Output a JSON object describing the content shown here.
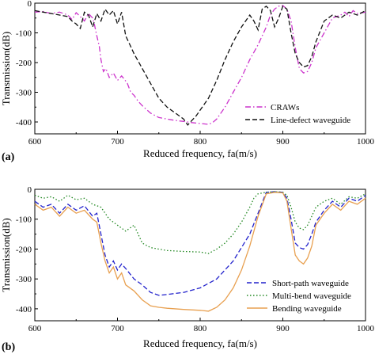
{
  "chart_data": [
    {
      "type": "line",
      "panel_label": "(a)",
      "xlabel": "Reduced frequency, fa(m/s)",
      "ylabel": "Transmission(dB)",
      "xlim": [
        600,
        1000
      ],
      "ylim": [
        -440,
        0
      ],
      "xticks": [
        600,
        700,
        800,
        900,
        1000
      ],
      "yticks": [
        0,
        -100,
        -200,
        -300,
        -400
      ],
      "legend_position": "bottom-right",
      "series": [
        {
          "name": "CRAWs",
          "color": "#cc33cc",
          "dash": "dashdot",
          "x": [
            600,
            610,
            620,
            630,
            640,
            645,
            650,
            655,
            660,
            665,
            670,
            672,
            675,
            678,
            680,
            683,
            686,
            690,
            695,
            700,
            705,
            708,
            712,
            716,
            720,
            725,
            730,
            740,
            750,
            760,
            770,
            780,
            790,
            800,
            810,
            815,
            820,
            830,
            840,
            850,
            860,
            870,
            880,
            885,
            890,
            895,
            900,
            905,
            910,
            915,
            920,
            925,
            930,
            935,
            940,
            950,
            960,
            970,
            975,
            980,
            985,
            990,
            1000
          ],
          "y": [
            -30,
            -28,
            -35,
            -30,
            -40,
            -55,
            -32,
            -45,
            -60,
            -35,
            -50,
            -70,
            -110,
            -145,
            -190,
            -230,
            -220,
            -250,
            -235,
            -260,
            -245,
            -255,
            -270,
            -300,
            -310,
            -330,
            -345,
            -370,
            -385,
            -390,
            -395,
            -398,
            -402,
            -405,
            -408,
            -402,
            -390,
            -350,
            -300,
            -250,
            -190,
            -140,
            -80,
            -40,
            -20,
            -10,
            -8,
            -20,
            -60,
            -150,
            -220,
            -235,
            -230,
            -200,
            -150,
            -100,
            -50,
            -40,
            -30,
            -45,
            -25,
            -35,
            -30
          ]
        },
        {
          "name": "Line-defect waveguide",
          "color": "#111111",
          "dash": "dashed",
          "x": [
            600,
            610,
            620,
            630,
            640,
            645,
            650,
            655,
            660,
            665,
            670,
            675,
            680,
            685,
            690,
            695,
            700,
            705,
            710,
            715,
            720,
            730,
            740,
            750,
            760,
            770,
            780,
            785,
            790,
            795,
            800,
            810,
            820,
            830,
            840,
            850,
            860,
            865,
            870,
            875,
            880,
            885,
            890,
            895,
            900,
            905,
            910,
            915,
            920,
            925,
            930,
            935,
            940,
            950,
            960,
            970,
            980,
            990,
            1000
          ],
          "y": [
            -25,
            -30,
            -35,
            -40,
            -45,
            -60,
            -70,
            -85,
            -30,
            -40,
            -80,
            -35,
            -60,
            -20,
            -40,
            -25,
            -70,
            -30,
            -110,
            -140,
            -170,
            -220,
            -270,
            -320,
            -350,
            -370,
            -390,
            -410,
            -395,
            -380,
            -360,
            -320,
            -260,
            -190,
            -130,
            -80,
            -40,
            -60,
            -90,
            -20,
            -10,
            -25,
            -80,
            -50,
            -10,
            -20,
            -100,
            -170,
            -200,
            -215,
            -210,
            -180,
            -130,
            -60,
            -40,
            -50,
            -30,
            -40,
            -25
          ]
        }
      ]
    },
    {
      "type": "line",
      "panel_label": "(b)",
      "xlabel": "Reduced frequency, fa(m/s)",
      "ylabel": "Transmission(dB)",
      "xlim": [
        600,
        1000
      ],
      "ylim": [
        -440,
        0
      ],
      "xticks": [
        600,
        700,
        800,
        900,
        1000
      ],
      "yticks": [
        0,
        -100,
        -200,
        -300,
        -400
      ],
      "legend_position": "bottom-right",
      "series": [
        {
          "name": "Short-path waveguide",
          "color": "#2222cc",
          "dash": "dashed",
          "x": [
            600,
            610,
            620,
            630,
            640,
            650,
            660,
            670,
            675,
            680,
            685,
            690,
            695,
            700,
            705,
            710,
            720,
            730,
            740,
            750,
            760,
            780,
            800,
            820,
            840,
            860,
            870,
            880,
            890,
            900,
            905,
            910,
            915,
            920,
            925,
            930,
            935,
            940,
            950,
            960,
            970,
            980,
            990,
            1000
          ],
          "y": [
            -40,
            -60,
            -50,
            -80,
            -50,
            -70,
            -55,
            -90,
            -80,
            -150,
            -220,
            -260,
            -240,
            -270,
            -250,
            -265,
            -300,
            -320,
            -345,
            -355,
            -352,
            -345,
            -330,
            -300,
            -240,
            -150,
            -80,
            -10,
            -8,
            -10,
            -30,
            -100,
            -180,
            -195,
            -200,
            -185,
            -150,
            -110,
            -70,
            -40,
            -60,
            -30,
            -40,
            -20
          ]
        },
        {
          "name": "Multi-bend waveguide",
          "color": "#228822",
          "dash": "dotted",
          "x": [
            600,
            610,
            620,
            630,
            640,
            650,
            660,
            670,
            680,
            690,
            700,
            710,
            720,
            730,
            740,
            750,
            760,
            780,
            800,
            810,
            820,
            830,
            840,
            850,
            860,
            865,
            870,
            880,
            890,
            900,
            905,
            910,
            915,
            920,
            925,
            930,
            935,
            940,
            950,
            960,
            970,
            980,
            990,
            1000
          ],
          "y": [
            -20,
            -30,
            -25,
            -40,
            -20,
            -35,
            -30,
            -50,
            -60,
            -100,
            -120,
            -140,
            -120,
            -180,
            -195,
            -200,
            -205,
            -208,
            -210,
            -215,
            -200,
            -180,
            -150,
            -110,
            -60,
            -30,
            -15,
            -10,
            -8,
            -10,
            -20,
            -60,
            -110,
            -130,
            -135,
            -120,
            -90,
            -60,
            -40,
            -30,
            -50,
            -25,
            -30,
            -15
          ]
        },
        {
          "name": "Bending waveguide",
          "color": "#e8a050",
          "dash": "solid",
          "x": [
            600,
            610,
            620,
            630,
            640,
            650,
            660,
            670,
            675,
            680,
            685,
            690,
            695,
            700,
            705,
            710,
            720,
            730,
            740,
            750,
            760,
            780,
            800,
            810,
            820,
            830,
            840,
            850,
            860,
            870,
            880,
            890,
            900,
            905,
            910,
            915,
            920,
            925,
            930,
            935,
            940,
            950,
            960,
            970,
            980,
            990,
            1000
          ],
          "y": [
            -50,
            -70,
            -60,
            -90,
            -60,
            -80,
            -70,
            -100,
            -110,
            -180,
            -240,
            -280,
            -260,
            -300,
            -280,
            -320,
            -340,
            -370,
            -390,
            -395,
            -398,
            -402,
            -405,
            -408,
            -395,
            -370,
            -330,
            -270,
            -190,
            -90,
            -15,
            -10,
            -12,
            -40,
            -130,
            -220,
            -240,
            -250,
            -230,
            -190,
            -120,
            -80,
            -50,
            -70,
            -40,
            -50,
            -30
          ]
        }
      ]
    }
  ]
}
